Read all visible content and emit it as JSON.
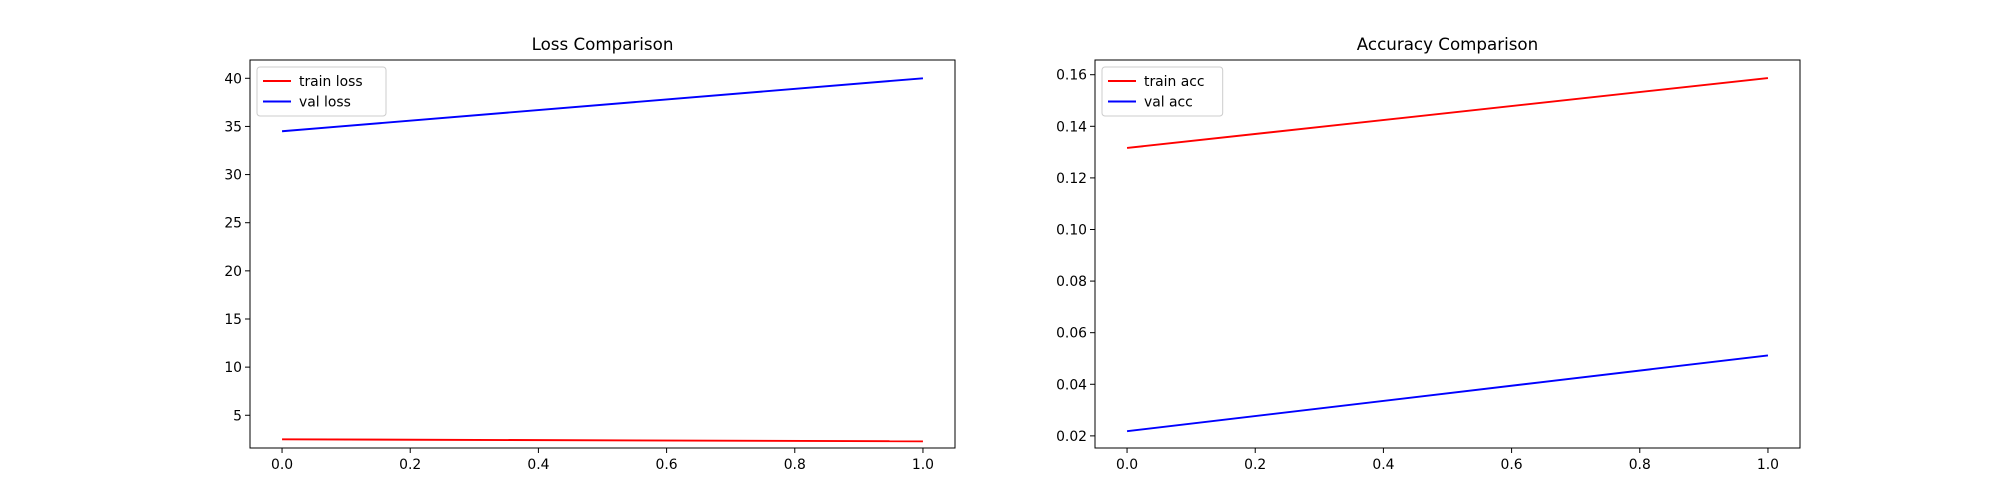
{
  "chart_data": [
    {
      "type": "line",
      "title": "Loss Comparison",
      "xlabel": "",
      "ylabel": "",
      "x": [
        0.0,
        1.0
      ],
      "xlim": [
        -0.05,
        1.05
      ],
      "ylim": [
        1.6,
        41.9
      ],
      "xticks": [
        0.0,
        0.2,
        0.4,
        0.6,
        0.8,
        1.0
      ],
      "xtick_labels": [
        "0.0",
        "0.2",
        "0.4",
        "0.6",
        "0.8",
        "1.0"
      ],
      "yticks": [
        5,
        10,
        15,
        20,
        25,
        30,
        35,
        40
      ],
      "ytick_labels": [
        "5",
        "10",
        "15",
        "20",
        "25",
        "30",
        "35",
        "40"
      ],
      "grid": false,
      "legend_position": "upper-left",
      "series": [
        {
          "name": "train loss",
          "color": "#ff0000",
          "values": [
            2.5,
            2.3
          ]
        },
        {
          "name": "val loss",
          "color": "#0000ff",
          "values": [
            34.5,
            40.0
          ]
        }
      ]
    },
    {
      "type": "line",
      "title": "Accuracy Comparison",
      "xlabel": "",
      "ylabel": "",
      "x": [
        0.0,
        1.0
      ],
      "xlim": [
        -0.05,
        1.05
      ],
      "ylim": [
        0.0153,
        0.1657
      ],
      "xticks": [
        0.0,
        0.2,
        0.4,
        0.6,
        0.8,
        1.0
      ],
      "xtick_labels": [
        "0.0",
        "0.2",
        "0.4",
        "0.6",
        "0.8",
        "1.0"
      ],
      "yticks": [
        0.02,
        0.04,
        0.06,
        0.08,
        0.1,
        0.12,
        0.14,
        0.16
      ],
      "ytick_labels": [
        "0.02",
        "0.04",
        "0.06",
        "0.08",
        "0.10",
        "0.12",
        "0.14",
        "0.16"
      ],
      "grid": false,
      "legend_position": "upper-left",
      "series": [
        {
          "name": "train acc",
          "color": "#ff0000",
          "values": [
            0.1316,
            0.1587
          ]
        },
        {
          "name": "val acc",
          "color": "#0000ff",
          "values": [
            0.0218,
            0.0512
          ]
        }
      ]
    }
  ]
}
